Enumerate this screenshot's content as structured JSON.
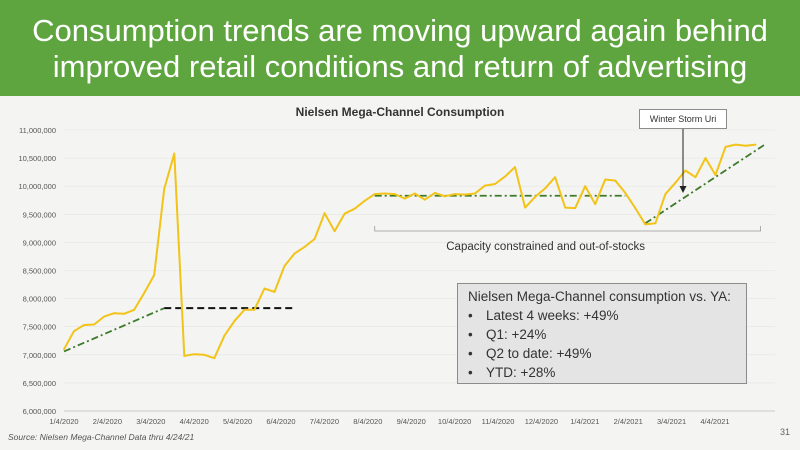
{
  "header": {
    "line1": "Consumption trends are moving upward again behind",
    "line2": "improved retail conditions and return of advertising"
  },
  "chart_data": {
    "type": "line",
    "title": "Nielsen Mega-Channel Consumption",
    "xlabel": "",
    "ylabel": "",
    "ylim": [
      6000000,
      11000000
    ],
    "y_ticks": [
      "11,000,000",
      "10,500,000",
      "10,000,000",
      "9,500,000",
      "9,000,000",
      "8,500,000",
      "8,000,000",
      "7,500,000",
      "7,000,000",
      "6,500,000",
      "6,000,000"
    ],
    "x_ticks": [
      "1/4/2020",
      "2/4/2020",
      "3/4/2020",
      "4/4/2020",
      "5/4/2020",
      "6/4/2020",
      "7/4/2020",
      "8/4/2020",
      "9/4/2020",
      "10/4/2020",
      "11/4/2020",
      "12/4/2020",
      "1/4/2021",
      "2/4/2021",
      "3/4/2021",
      "4/4/2021"
    ],
    "series": [
      {
        "color": "#f2c318",
        "week_index": [
          0,
          1,
          2,
          3,
          4,
          5,
          6,
          7,
          8,
          9,
          10,
          11,
          12,
          13,
          14,
          15,
          16,
          17,
          18,
          19,
          20,
          21,
          22,
          23,
          24,
          25,
          26,
          27,
          28,
          29,
          30,
          31,
          32,
          33,
          34,
          35,
          36,
          37,
          38,
          39,
          40,
          41,
          42,
          43,
          44,
          45,
          46,
          47,
          48,
          49,
          50,
          51,
          52,
          53,
          54,
          55,
          56,
          57,
          58,
          59,
          60,
          61,
          62,
          63,
          64,
          65,
          66,
          67,
          68,
          69
        ],
        "values": [
          7100000,
          7420000,
          7530000,
          7540000,
          7680000,
          7740000,
          7730000,
          7800000,
          8100000,
          8420000,
          9950000,
          10580000,
          6980000,
          7010000,
          7000000,
          6940000,
          7340000,
          7600000,
          7800000,
          7800000,
          8180000,
          8120000,
          8580000,
          8800000,
          8920000,
          9060000,
          9520000,
          9200000,
          9510000,
          9600000,
          9740000,
          9860000,
          9870000,
          9860000,
          9780000,
          9870000,
          9760000,
          9880000,
          9820000,
          9860000,
          9850000,
          9870000,
          10010000,
          10040000,
          10170000,
          10340000,
          9620000,
          9810000,
          9960000,
          10160000,
          9620000,
          9610000,
          10000000,
          9680000,
          10120000,
          10100000,
          9880000,
          9610000,
          9320000,
          9340000,
          9860000,
          10060000,
          10280000,
          10160000,
          10500000,
          10200000,
          10700000,
          10740000,
          10720000,
          10740000
        ]
      }
    ],
    "trend_lines": [
      {
        "style": "dash-dot",
        "color": "#3d7a2a",
        "from": [
          0,
          7060000
        ],
        "to": [
          10,
          7830000
        ]
      },
      {
        "style": "dash",
        "color": "#111111",
        "from": [
          10,
          7830000
        ],
        "to": [
          23,
          7830000
        ]
      },
      {
        "style": "dash-dot",
        "color": "#3d7a2a",
        "from": [
          31,
          9830000
        ],
        "to": [
          56,
          9830000
        ]
      },
      {
        "style": "dash-dot",
        "color": "#3d7a2a",
        "from": [
          58,
          9340000
        ],
        "to": [
          70,
          10750000
        ]
      }
    ],
    "annotations": {
      "bracket_label": "Capacity constrained and out-of-stocks",
      "storm_label": "Winter Storm Uri"
    }
  },
  "callout": {
    "title": "Nielsen Mega-Channel consumption vs. YA:",
    "items": [
      "Latest 4 weeks: +49%",
      "Q1:  +24%",
      "Q2 to date: +49%",
      "YTD:  +28%"
    ]
  },
  "footer": {
    "source": "Source:  Nielsen Mega-Channel Data thru 4/24/21",
    "page": "31"
  }
}
